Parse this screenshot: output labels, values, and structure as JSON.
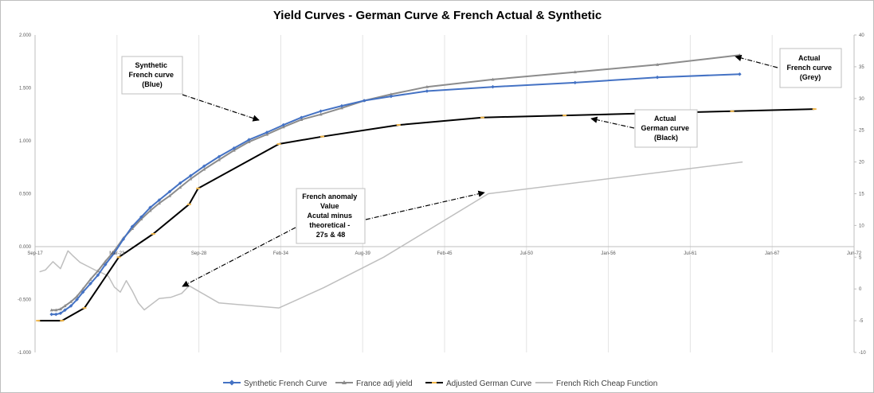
{
  "chart_data": {
    "type": "line",
    "title": "Yield Curves - German Curve & French Actual & Synthetic",
    "x_ticks": [
      "Sep-17",
      "Mar-23",
      "Sep-28",
      "Feb-34",
      "Aug-39",
      "Feb-45",
      "Jul-50",
      "Jan-56",
      "Jul-61",
      "Jan-67",
      "Jun-72"
    ],
    "x_range_years": [
      2017.7,
      2072.45
    ],
    "y_left_ticks": [
      "2.000",
      "1.500",
      "1.000",
      "0.500",
      "0.000",
      "-0.500",
      "-1.000"
    ],
    "y_left_range": [
      -1.0,
      2.0
    ],
    "y_right_ticks": [
      "40",
      "35",
      "30",
      "25",
      "20",
      "15",
      "10",
      "5",
      "0",
      "-5",
      "-10"
    ],
    "y_right_range": [
      -10,
      40
    ],
    "grid": "vertical",
    "legend_position": "bottom",
    "series": [
      {
        "name": "Synthetic French Curve",
        "color": "#4472c4",
        "axis": "left",
        "marker": "diamond",
        "x": [
          2018.8,
          2019.1,
          2019.4,
          2019.7,
          2020.1,
          2020.5,
          2020.9,
          2021.4,
          2021.9,
          2022.4,
          2023.0,
          2023.6,
          2024.2,
          2024.8,
          2025.4,
          2026.0,
          2026.7,
          2027.4,
          2028.1,
          2029.0,
          2030.0,
          2031.0,
          2032.0,
          2033.2,
          2034.3,
          2035.5,
          2036.8,
          2038.2,
          2039.7,
          2041.5,
          2043.9,
          2048.3,
          2053.8,
          2059.3,
          2064.8
        ],
        "y": [
          -0.64,
          -0.64,
          -0.63,
          -0.6,
          -0.56,
          -0.5,
          -0.43,
          -0.35,
          -0.27,
          -0.17,
          -0.06,
          0.07,
          0.19,
          0.28,
          0.37,
          0.44,
          0.52,
          0.6,
          0.67,
          0.76,
          0.85,
          0.93,
          1.01,
          1.08,
          1.15,
          1.22,
          1.28,
          1.33,
          1.38,
          1.42,
          1.47,
          1.51,
          1.55,
          1.6,
          1.63
        ]
      },
      {
        "name": "France adj yield",
        "color": "#8c8c8c",
        "axis": "left",
        "marker": "triangle",
        "x": [
          2018.8,
          2019.1,
          2019.4,
          2019.7,
          2020.1,
          2020.5,
          2020.9,
          2021.4,
          2021.9,
          2022.4,
          2023.0,
          2023.6,
          2024.2,
          2024.8,
          2025.4,
          2026.0,
          2026.7,
          2027.4,
          2028.1,
          2029.0,
          2030.0,
          2031.0,
          2032.0,
          2033.2,
          2034.3,
          2035.5,
          2036.8,
          2038.2,
          2039.7,
          2041.5,
          2043.9,
          2048.3,
          2053.8,
          2059.3,
          2064.8
        ],
        "y": [
          -0.6,
          -0.6,
          -0.59,
          -0.56,
          -0.52,
          -0.47,
          -0.4,
          -0.31,
          -0.23,
          -0.14,
          -0.04,
          0.08,
          0.17,
          0.26,
          0.34,
          0.41,
          0.48,
          0.56,
          0.64,
          0.73,
          0.82,
          0.91,
          0.99,
          1.06,
          1.13,
          1.2,
          1.25,
          1.31,
          1.38,
          1.44,
          1.51,
          1.58,
          1.65,
          1.72,
          1.81
        ]
      },
      {
        "name": "Adjusted German Curve",
        "color": "#000000",
        "axis": "left",
        "marker": "dash",
        "x": [
          2017.9,
          2019.5,
          2021.0,
          2023.3,
          2025.6,
          2028.0,
          2028.6,
          2034.0,
          2036.9,
          2042.0,
          2047.6,
          2053.1,
          2058.7,
          2064.3,
          2069.8
        ],
        "y": [
          -0.7,
          -0.7,
          -0.58,
          -0.1,
          0.12,
          0.4,
          0.55,
          0.97,
          1.04,
          1.15,
          1.22,
          1.24,
          1.26,
          1.28,
          1.3
        ]
      },
      {
        "name": "French Rich Cheap Function",
        "color": "#bfbfbf",
        "axis": "right",
        "marker": "none",
        "x": [
          2018.0,
          2018.4,
          2018.9,
          2019.4,
          2019.9,
          2020.2,
          2020.7,
          2021.2,
          2021.7,
          2022.2,
          2022.6,
          2023.0,
          2023.4,
          2023.8,
          2024.2,
          2024.6,
          2025.0,
          2026.0,
          2026.8,
          2027.5,
          2028.0,
          2030.0,
          2034.0,
          2037.0,
          2041.0,
          2048.0,
          2065.0
        ],
        "y": [
          2.7,
          3.0,
          4.3,
          3.2,
          6.0,
          5.3,
          4.2,
          3.6,
          3.0,
          2.5,
          2.0,
          0.3,
          -0.5,
          1.3,
          -0.3,
          -2.2,
          -3.3,
          -1.5,
          -1.3,
          -0.7,
          0.5,
          -2.2,
          -3.0,
          0.2,
          5.0,
          15.0,
          20.0
        ]
      }
    ],
    "annotations": [
      {
        "id": "synthetic",
        "lines": [
          "Synthetic",
          "French curve",
          "(Blue)"
        ]
      },
      {
        "id": "actual-french",
        "lines": [
          "Actual",
          "French curve",
          "(Grey)"
        ]
      },
      {
        "id": "actual-german",
        "lines": [
          "Actual",
          "German curve",
          "(Black)"
        ]
      },
      {
        "id": "anomaly",
        "lines": [
          "French anomaly",
          "Value",
          "Acutal minus",
          "theoretical -",
          "27s & 48"
        ]
      }
    ]
  }
}
